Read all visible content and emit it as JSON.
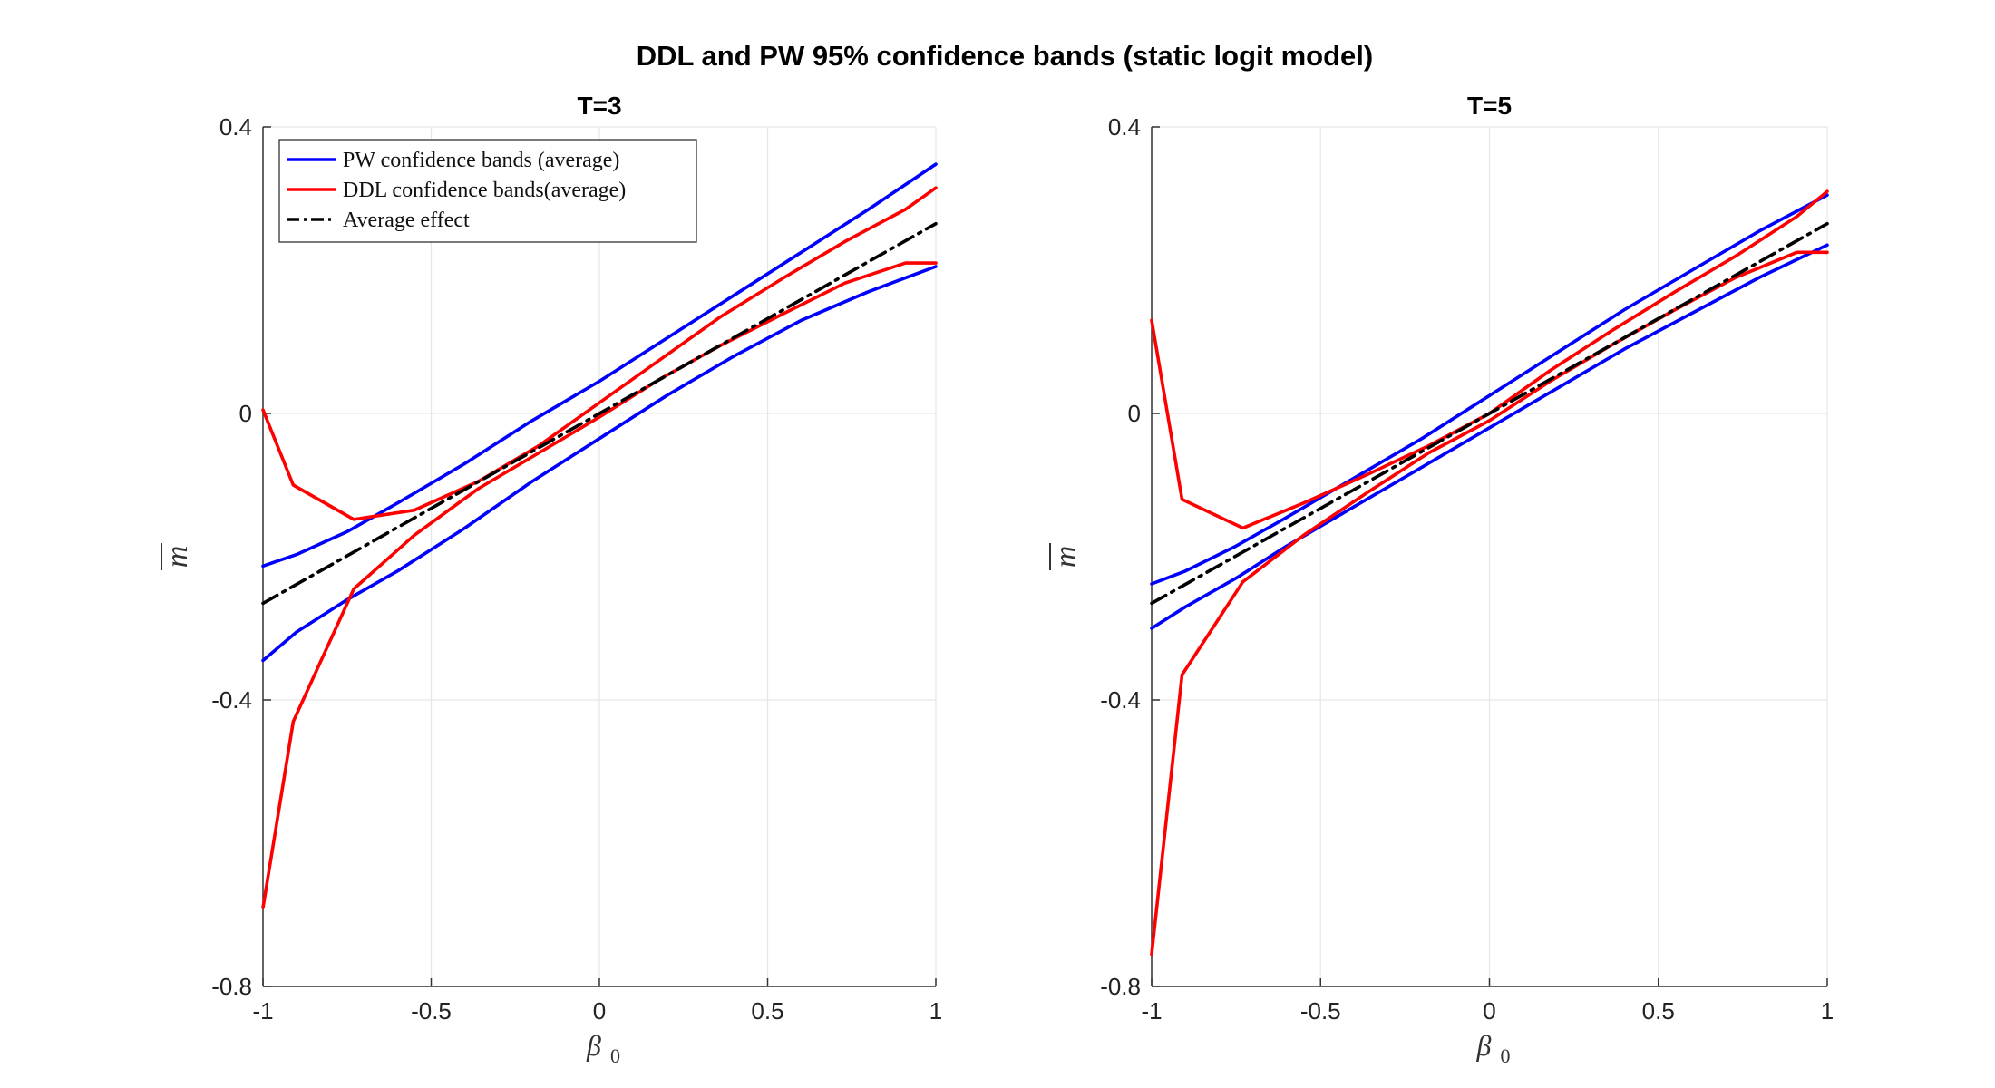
{
  "figure_title": "DDL and PW 95% confidence bands (static logit model)",
  "chart_data": [
    {
      "type": "line",
      "title": "T=3",
      "xlabel": "β",
      "xlabel_sub": "0",
      "ylabel": "m",
      "xlim": [
        -1,
        1
      ],
      "ylim": [
        -0.8,
        0.4
      ],
      "xticks": [
        -1,
        -0.5,
        0,
        0.5,
        1
      ],
      "xtick_labels": [
        "-1",
        "-0.5",
        "0",
        "0.5",
        "1"
      ],
      "yticks": [
        -0.8,
        -0.4,
        0,
        0.4
      ],
      "ytick_labels": [
        "-0.8",
        "-0.4",
        "0",
        "0.4"
      ],
      "grid": true,
      "legend": {
        "position": "top-left",
        "entries": [
          {
            "label": "PW confidence bands (average)",
            "color": "#0000ff",
            "dash": "solid"
          },
          {
            "label": "DDL confidence bands(average)",
            "color": "#ff0000",
            "dash": "solid"
          },
          {
            "label": "Average effect",
            "color": "#000000",
            "dash": "dashdot"
          }
        ]
      },
      "series": [
        {
          "name": "PW upper",
          "color": "#0000ff",
          "dash": "solid",
          "x": [
            -1,
            -0.9,
            -0.75,
            -0.6,
            -0.4,
            -0.2,
            0,
            0.2,
            0.4,
            0.6,
            0.8,
            1
          ],
          "y": [
            -0.213,
            -0.197,
            -0.165,
            -0.125,
            -0.07,
            -0.01,
            0.045,
            0.105,
            0.165,
            0.225,
            0.285,
            0.348
          ]
        },
        {
          "name": "PW lower",
          "color": "#0000ff",
          "dash": "solid",
          "x": [
            -1,
            -0.9,
            -0.75,
            -0.6,
            -0.4,
            -0.2,
            0,
            0.2,
            0.4,
            0.6,
            0.8,
            1
          ],
          "y": [
            -0.345,
            -0.305,
            -0.26,
            -0.22,
            -0.16,
            -0.095,
            -0.035,
            0.025,
            0.08,
            0.13,
            0.17,
            0.205
          ]
        },
        {
          "name": "DDL upper",
          "color": "#ff0000",
          "dash": "solid",
          "x": [
            -1,
            -0.91,
            -0.73,
            -0.55,
            -0.36,
            -0.18,
            0,
            0.18,
            0.36,
            0.55,
            0.73,
            0.91,
            1
          ],
          "y": [
            0.005,
            -0.1,
            -0.148,
            -0.135,
            -0.095,
            -0.045,
            0.015,
            0.075,
            0.135,
            0.19,
            0.24,
            0.285,
            0.315
          ]
        },
        {
          "name": "DDL lower",
          "color": "#ff0000",
          "dash": "solid",
          "x": [
            -1,
            -0.91,
            -0.73,
            -0.55,
            -0.36,
            -0.18,
            0,
            0.18,
            0.36,
            0.55,
            0.73,
            0.91,
            1
          ],
          "y": [
            -0.69,
            -0.43,
            -0.245,
            -0.17,
            -0.105,
            -0.055,
            -0.005,
            0.048,
            0.095,
            0.14,
            0.182,
            0.21,
            0.21
          ]
        },
        {
          "name": "Average effect",
          "color": "#000000",
          "dash": "dashdot",
          "x": [
            -1,
            1
          ],
          "y": [
            -0.265,
            0.265
          ]
        }
      ]
    },
    {
      "type": "line",
      "title": "T=5",
      "xlabel": "β",
      "xlabel_sub": "0",
      "ylabel": "m",
      "xlim": [
        -1,
        1
      ],
      "ylim": [
        -0.8,
        0.4
      ],
      "xticks": [
        -1,
        -0.5,
        0,
        0.5,
        1
      ],
      "xtick_labels": [
        "-1",
        "-0.5",
        "0",
        "0.5",
        "1"
      ],
      "yticks": [
        -0.8,
        -0.4,
        0,
        0.4
      ],
      "ytick_labels": [
        "-0.8",
        "-0.4",
        "0",
        "0.4"
      ],
      "grid": true,
      "series": [
        {
          "name": "PW upper",
          "color": "#0000ff",
          "dash": "solid",
          "x": [
            -1,
            -0.9,
            -0.75,
            -0.6,
            -0.4,
            -0.2,
            0,
            0.2,
            0.4,
            0.6,
            0.8,
            1
          ],
          "y": [
            -0.238,
            -0.22,
            -0.185,
            -0.145,
            -0.09,
            -0.035,
            0.025,
            0.085,
            0.145,
            0.2,
            0.255,
            0.305
          ]
        },
        {
          "name": "PW lower",
          "color": "#0000ff",
          "dash": "solid",
          "x": [
            -1,
            -0.9,
            -0.75,
            -0.6,
            -0.4,
            -0.2,
            0,
            0.2,
            0.4,
            0.6,
            0.8,
            1
          ],
          "y": [
            -0.3,
            -0.27,
            -0.23,
            -0.185,
            -0.13,
            -0.075,
            -0.02,
            0.035,
            0.09,
            0.14,
            0.19,
            0.235
          ]
        },
        {
          "name": "DDL upper",
          "color": "#ff0000",
          "dash": "solid",
          "x": [
            -1,
            -0.91,
            -0.73,
            -0.55,
            -0.36,
            -0.18,
            0,
            0.18,
            0.36,
            0.55,
            0.73,
            0.91,
            1
          ],
          "y": [
            0.13,
            -0.12,
            -0.16,
            -0.125,
            -0.085,
            -0.045,
            0.0,
            0.06,
            0.115,
            0.17,
            0.22,
            0.275,
            0.31
          ]
        },
        {
          "name": "DDL lower",
          "color": "#ff0000",
          "dash": "solid",
          "x": [
            -1,
            -0.91,
            -0.73,
            -0.55,
            -0.36,
            -0.18,
            0,
            0.18,
            0.36,
            0.55,
            0.73,
            0.91,
            1
          ],
          "y": [
            -0.755,
            -0.365,
            -0.235,
            -0.17,
            -0.11,
            -0.055,
            -0.01,
            0.045,
            0.095,
            0.145,
            0.19,
            0.225,
            0.225
          ]
        },
        {
          "name": "Average effect",
          "color": "#000000",
          "dash": "dashdot",
          "x": [
            -1,
            1
          ],
          "y": [
            -0.265,
            0.265
          ]
        }
      ]
    }
  ]
}
